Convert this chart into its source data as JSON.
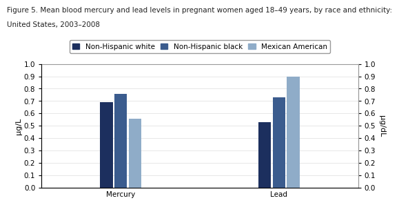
{
  "title_line1": "Figure 5. Mean blood mercury and lead levels in pregnant women aged 18–49 years, by race and ethnicity:",
  "title_line2": "United States, 2003–2008",
  "groups": [
    "Mercury",
    "Lead"
  ],
  "series": [
    "Non-Hispanic white",
    "Non-Hispanic black",
    "Mexican American"
  ],
  "values": {
    "Mercury": [
      0.69,
      0.76,
      0.56
    ],
    "Lead": [
      0.53,
      0.73,
      0.9
    ]
  },
  "colors": [
    "#1c2f5e",
    "#3b5c8e",
    "#8facc8"
  ],
  "ylabel_left": "µg/L",
  "ylabel_right": "µg/dL",
  "ylim": [
    0.0,
    1.0
  ],
  "yticks": [
    0.0,
    0.1,
    0.2,
    0.3,
    0.4,
    0.5,
    0.6,
    0.7,
    0.8,
    0.9,
    1.0
  ],
  "bar_width": 0.08,
  "background_color": "#ffffff",
  "border_color": "#999999",
  "title_fontsize": 7.5,
  "tick_fontsize": 7.5,
  "legend_fontsize": 7.5,
  "axis_label_fontsize": 8
}
